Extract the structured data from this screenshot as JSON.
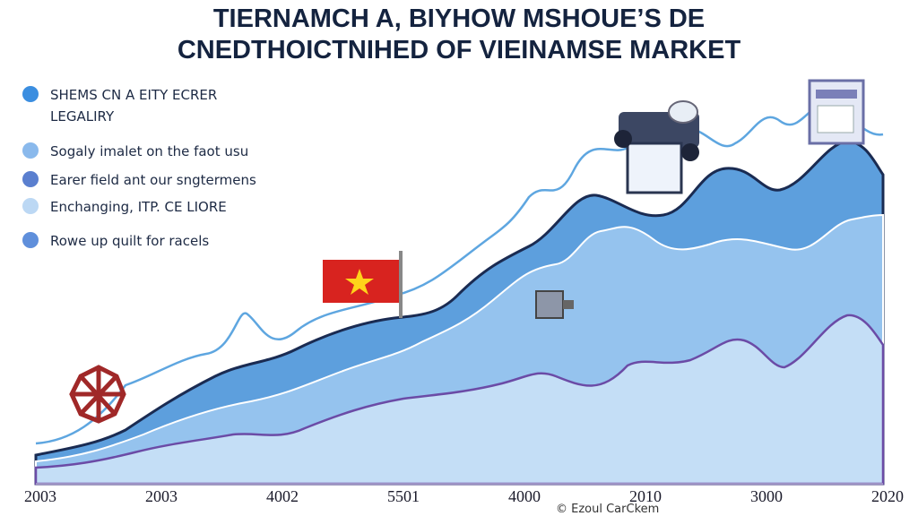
{
  "title": {
    "lines": [
      "TIERNAMCH A, BIYHOW MSHOUE’S DE",
      "CNEDTHOICTNIHED OF VIEINAMSE MARKET"
    ]
  },
  "legend": [
    {
      "lines": [
        "SHEMS CN A EITY ECRER",
        "LEGALIRY"
      ]
    },
    {
      "lines": [
        "Sogaly imalet on the faot usu"
      ]
    },
    {
      "lines": [
        "Earer field ant our sngtermens"
      ]
    },
    {
      "lines": [
        "Enchanging, ITP. CE LIORE"
      ]
    },
    {
      "lines": [
        "Rowe up quilt for racels"
      ]
    }
  ],
  "x_labels": [
    "2003",
    "2003",
    "4002",
    "5501",
    "4000",
    "2010",
    "3000",
    "2020"
  ],
  "footer": "© Ezoul CarCkem"
}
